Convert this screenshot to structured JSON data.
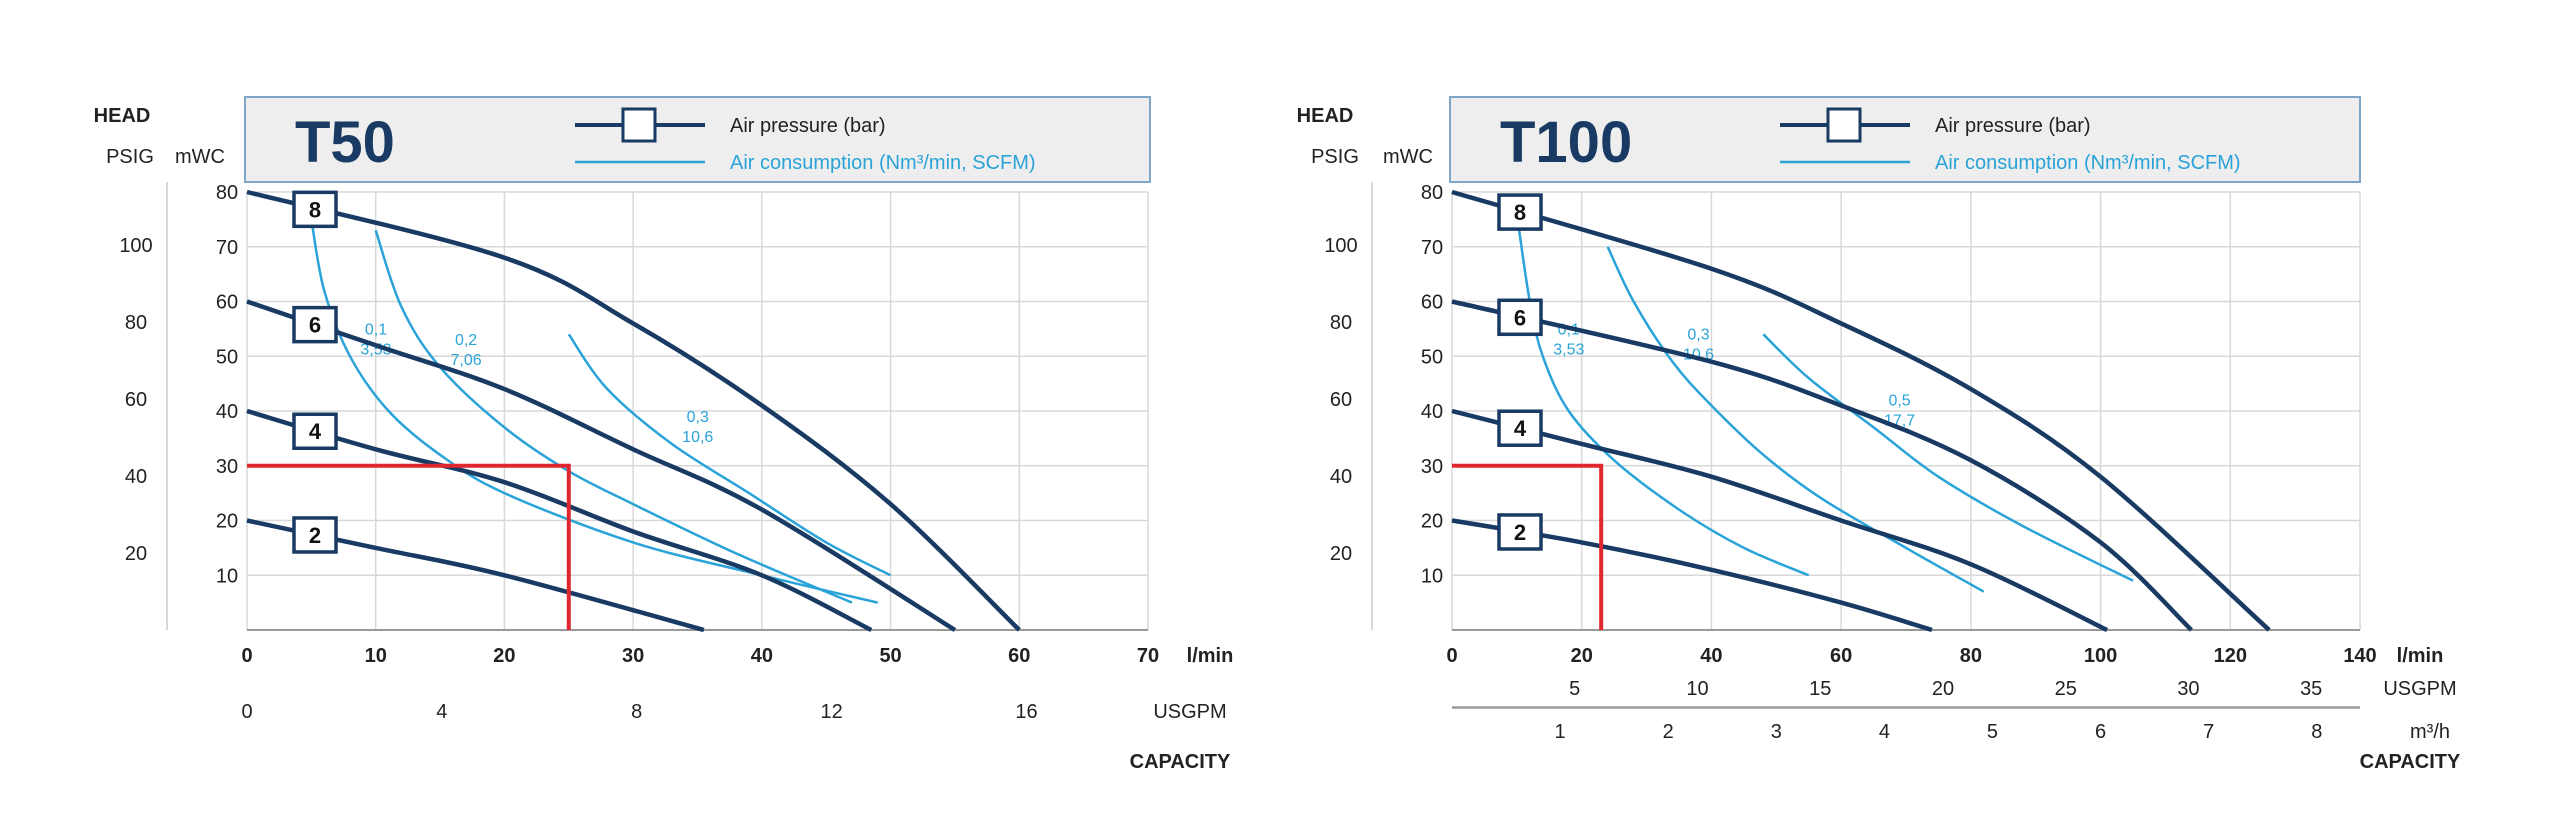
{
  "colors": {
    "navy": "#183a63",
    "cyan": "#2aa3d8",
    "red": "#e0262f",
    "grid": "#d8d8d8",
    "legend_bg": "#eeeeee",
    "legend_border": "#7fa6c8"
  },
  "chart_data": [
    {
      "type": "line",
      "title": "T50",
      "head_label": "HEAD",
      "psig_label": "PSIG",
      "mwc_label": "mWC",
      "capacity_label": "CAPACITY",
      "legend": {
        "air_pressure": "Air pressure (bar)",
        "air_consumption": "Air consumption (Nm³/min, SCFM)"
      },
      "x_unit": "l/min",
      "xlim": [
        0,
        70
      ],
      "ylim": [
        0,
        80
      ],
      "x_ticks": [
        "0",
        "10",
        "20",
        "30",
        "40",
        "50",
        "60",
        "70"
      ],
      "mwc_ticks": [
        "10",
        "20",
        "30",
        "40",
        "50",
        "60",
        "70",
        "80"
      ],
      "psig_ticks": [
        "20",
        "40",
        "60",
        "80",
        "100"
      ],
      "usgpm_unit": "USGPM",
      "usgpm_ticks": [
        "0",
        "4",
        "8",
        "12",
        "16"
      ],
      "m3h_unit": "",
      "m3h_ticks": [],
      "pressure_series": [
        {
          "name": "8",
          "x": [
            0,
            20,
            30,
            40,
            50,
            60
          ],
          "y": [
            80,
            68,
            56,
            41,
            23,
            0
          ]
        },
        {
          "name": "6",
          "x": [
            0,
            10,
            20,
            30,
            40,
            55
          ],
          "y": [
            60,
            52,
            44,
            33,
            22,
            0
          ]
        },
        {
          "name": "4",
          "x": [
            0,
            10,
            20,
            30,
            40,
            48.5
          ],
          "y": [
            40,
            33,
            27,
            18,
            10,
            0
          ]
        },
        {
          "name": "2",
          "x": [
            0,
            10,
            20,
            35.5
          ],
          "y": [
            20,
            15,
            10,
            0
          ]
        }
      ],
      "consumption_series": [
        {
          "labels": [
            "0,1",
            "3,53"
          ],
          "x": [
            5,
            6,
            8,
            11,
            15,
            20,
            30,
            40,
            49
          ],
          "y": [
            75,
            62,
            50,
            40,
            32,
            25,
            16,
            10,
            5
          ]
        },
        {
          "labels": [
            "0,2",
            "7,06"
          ],
          "x": [
            10,
            12,
            15,
            20,
            25,
            30,
            38,
            47
          ],
          "y": [
            73,
            59,
            48,
            37,
            29,
            23,
            14,
            5
          ]
        },
        {
          "labels": [
            "0,3",
            "10,6"
          ],
          "x": [
            25,
            28,
            33,
            39,
            45,
            50
          ],
          "y": [
            54,
            44,
            34,
            25,
            16,
            10
          ]
        }
      ],
      "duty_point": {
        "x": 25,
        "y": 30
      }
    },
    {
      "type": "line",
      "title": "T100",
      "head_label": "HEAD",
      "psig_label": "PSIG",
      "mwc_label": "mWC",
      "capacity_label": "CAPACITY",
      "legend": {
        "air_pressure": "Air pressure (bar)",
        "air_consumption": "Air consumption (Nm³/min, SCFM)"
      },
      "x_unit": "l/min",
      "xlim": [
        0,
        140
      ],
      "ylim": [
        0,
        80
      ],
      "x_ticks": [
        "0",
        "20",
        "40",
        "60",
        "80",
        "100",
        "120",
        "140"
      ],
      "mwc_ticks": [
        "10",
        "20",
        "30",
        "40",
        "50",
        "60",
        "70",
        "80"
      ],
      "psig_ticks": [
        "20",
        "40",
        "60",
        "80",
        "100"
      ],
      "usgpm_unit": "USGPM",
      "usgpm_ticks": [
        "5",
        "10",
        "15",
        "20",
        "25",
        "30",
        "35"
      ],
      "m3h_unit": "m³/h",
      "m3h_ticks": [
        "1",
        "2",
        "3",
        "4",
        "5",
        "6",
        "7",
        "8"
      ],
      "pressure_series": [
        {
          "name": "8",
          "x": [
            0,
            40,
            60,
            80,
            100,
            126
          ],
          "y": [
            80,
            66,
            56,
            44,
            28,
            0
          ]
        },
        {
          "name": "6",
          "x": [
            0,
            40,
            60,
            80,
            100,
            114
          ],
          "y": [
            60,
            49,
            41,
            31,
            16,
            0
          ]
        },
        {
          "name": "4",
          "x": [
            0,
            20,
            40,
            60,
            80,
            101
          ],
          "y": [
            40,
            34,
            28,
            20,
            12,
            0
          ]
        },
        {
          "name": "2",
          "x": [
            0,
            20,
            40,
            60,
            74
          ],
          "y": [
            20,
            16,
            11,
            5,
            0
          ]
        }
      ],
      "consumption_series": [
        {
          "labels": [
            "0,1",
            "3,53"
          ],
          "x": [
            10,
            12,
            14,
            18,
            25,
            35,
            45,
            55
          ],
          "y": [
            76,
            60,
            50,
            40,
            31,
            22,
            15,
            10
          ]
        },
        {
          "labels": [
            "0,3",
            "10,6"
          ],
          "x": [
            24,
            28,
            34,
            40,
            48,
            57,
            70,
            82
          ],
          "y": [
            70,
            60,
            49,
            41,
            32,
            24,
            15,
            7
          ]
        },
        {
          "labels": [
            "0,5",
            "17,7"
          ],
          "x": [
            48,
            55,
            65,
            75,
            88,
            105
          ],
          "y": [
            54,
            46,
            37,
            28,
            19,
            9
          ]
        }
      ],
      "duty_point": {
        "x": 23,
        "y": 30
      }
    }
  ]
}
